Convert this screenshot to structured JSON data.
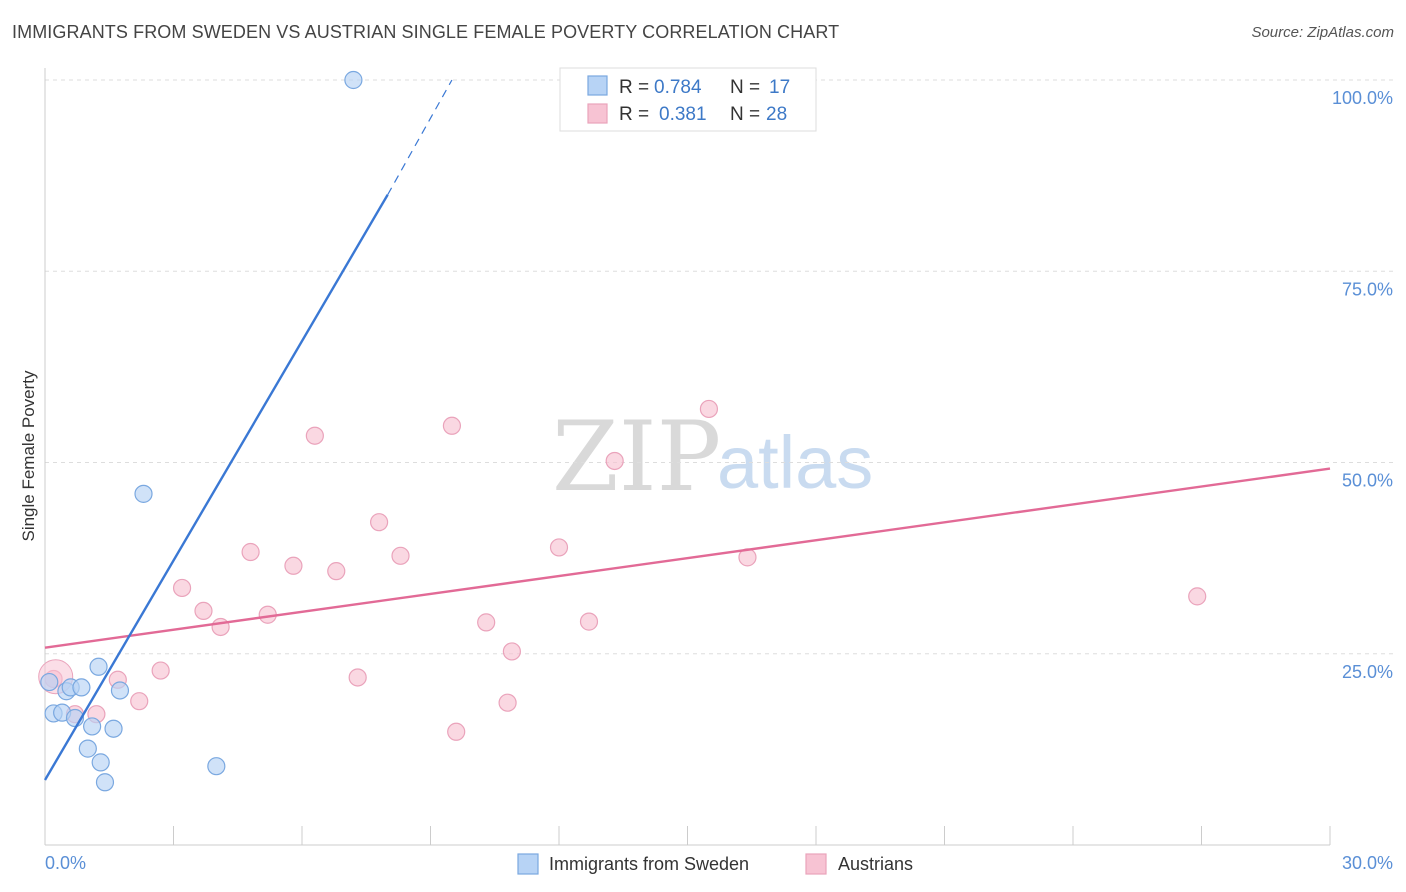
{
  "title": "IMMIGRANTS FROM SWEDEN VS AUSTRIAN SINGLE FEMALE POVERTY CORRELATION CHART",
  "source": "Source: ZipAtlas.com",
  "watermark": {
    "zip": "ZIP",
    "atlas": "atlas"
  },
  "colors": {
    "blue": "#3a78d4",
    "blue_fill": "#b7d3f5",
    "pink": "#e26a96",
    "pink_fill": "#f7c3d3",
    "tick": "#5a8fd6",
    "grid": "#dddddd"
  },
  "stats": {
    "r_label": "R =",
    "n_label": "N =",
    "rows": [
      {
        "r": "0.784",
        "n": "17",
        "series": "blue"
      },
      {
        "r": "0.381",
        "n": "28",
        "series": "pink"
      }
    ]
  },
  "chart_data": {
    "type": "scatter",
    "title": "IMMIGRANTS FROM SWEDEN VS AUSTRIAN SINGLE FEMALE POVERTY CORRELATION CHART",
    "xlabel": "",
    "ylabel": "Single Female Poverty",
    "xlim": [
      0,
      30
    ],
    "ylim": [
      0,
      100
    ],
    "x_tick_labels": [
      "0.0%",
      "30.0%"
    ],
    "y_ticks": [
      25,
      50,
      75,
      100
    ],
    "y_tick_labels": [
      "25.0%",
      "50.0%",
      "75.0%",
      "100.0%"
    ],
    "legend_position": "bottom-center",
    "series": [
      {
        "name": "Immigrants from Sweden",
        "color": "blue",
        "r": 0.784,
        "n": 17,
        "points": [
          [
            0.1,
            21.3
          ],
          [
            0.2,
            17.2
          ],
          [
            0.4,
            17.3
          ],
          [
            0.5,
            20.1
          ],
          [
            0.6,
            20.6
          ],
          [
            0.7,
            16.6
          ],
          [
            0.85,
            20.6
          ],
          [
            1.0,
            12.6
          ],
          [
            1.1,
            15.5
          ],
          [
            1.3,
            10.8
          ],
          [
            1.4,
            8.2
          ],
          [
            1.25,
            23.3
          ],
          [
            1.6,
            15.2
          ],
          [
            1.75,
            20.2
          ],
          [
            2.3,
            45.9
          ],
          [
            4.0,
            10.3
          ],
          [
            7.2,
            100.0
          ]
        ],
        "trend_solid": [
          [
            0.0,
            8.5
          ],
          [
            8.0,
            85.0
          ]
        ],
        "trend_dashed": [
          [
            8.0,
            85.0
          ],
          [
            9.5,
            100.0
          ]
        ]
      },
      {
        "name": "Austrians",
        "color": "pink",
        "r": 0.381,
        "n": 28,
        "points": [
          [
            0.2,
            21.7
          ],
          [
            0.7,
            17.1
          ],
          [
            1.2,
            17.1
          ],
          [
            1.7,
            21.6
          ],
          [
            2.2,
            18.8
          ],
          [
            2.7,
            22.8
          ],
          [
            3.2,
            33.6
          ],
          [
            3.7,
            30.6
          ],
          [
            4.1,
            28.5
          ],
          [
            4.8,
            38.3
          ],
          [
            5.2,
            30.1
          ],
          [
            5.8,
            36.5
          ],
          [
            6.3,
            53.5
          ],
          [
            6.8,
            35.8
          ],
          [
            7.3,
            21.9
          ],
          [
            7.8,
            42.2
          ],
          [
            8.3,
            37.8
          ],
          [
            9.5,
            54.8
          ],
          [
            9.6,
            14.8
          ],
          [
            10.3,
            29.1
          ],
          [
            10.8,
            18.6
          ],
          [
            10.9,
            25.3
          ],
          [
            12.0,
            38.9
          ],
          [
            12.7,
            29.2
          ],
          [
            13.3,
            50.2
          ],
          [
            15.5,
            57.0
          ],
          [
            16.4,
            37.6
          ],
          [
            26.9,
            32.5
          ]
        ],
        "trend_solid": [
          [
            0.0,
            25.8
          ],
          [
            30.0,
            49.2
          ]
        ]
      }
    ]
  },
  "legend": [
    {
      "label": "Immigrants from Sweden",
      "color": "blue"
    },
    {
      "label": "Austrians",
      "color": "pink"
    }
  ]
}
